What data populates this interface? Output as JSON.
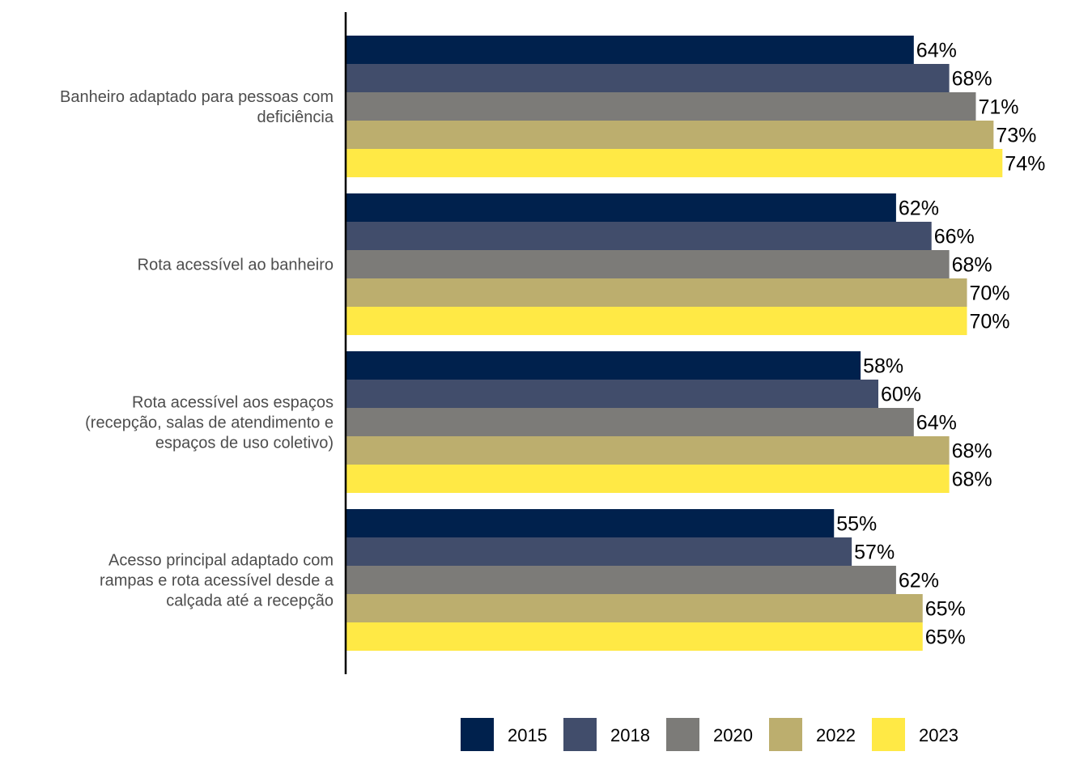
{
  "chart_data": {
    "type": "bar",
    "orientation": "horizontal",
    "title": "",
    "xlabel": "",
    "ylabel": "",
    "xlim": [
      0,
      100
    ],
    "grid": false,
    "value_suffix": "%",
    "categories": [
      [
        "Banheiro adaptado para pessoas com",
        "deficiência"
      ],
      [
        "Rota acessível ao banheiro"
      ],
      [
        "Rota acessível aos espaços",
        "(recepção, salas de atendimento e",
        "espaços de uso coletivo)"
      ],
      [
        "Acesso principal adaptado com",
        "rampas e rota acessível desde a",
        "calçada até a recepção"
      ]
    ],
    "series": [
      {
        "name": "2015",
        "color": "#00214d",
        "values": [
          64,
          62,
          58,
          55
        ]
      },
      {
        "name": "2018",
        "color": "#414d6b",
        "values": [
          68,
          66,
          60,
          57
        ]
      },
      {
        "name": "2020",
        "color": "#7c7b78",
        "values": [
          71,
          68,
          64,
          62
        ]
      },
      {
        "name": "2022",
        "color": "#bcae6e",
        "values": [
          73,
          70,
          68,
          65
        ]
      },
      {
        "name": "2023",
        "color": "#ffe945",
        "values": [
          74,
          70,
          68,
          65
        ]
      }
    ],
    "legend": {
      "position": "bottom",
      "entries": [
        "2015",
        "2018",
        "2020",
        "2022",
        "2023"
      ]
    }
  }
}
